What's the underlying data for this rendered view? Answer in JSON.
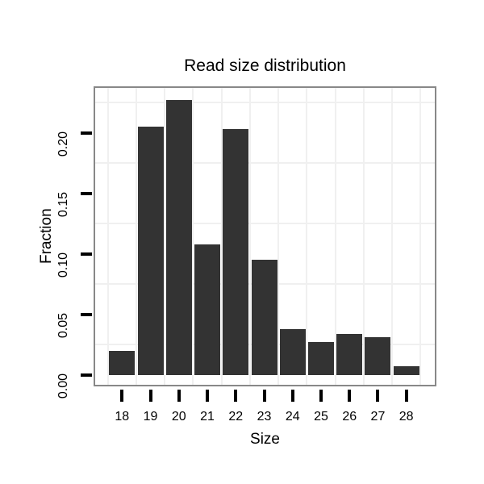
{
  "chart_data": {
    "type": "bar",
    "title": "Read size distribution",
    "xlabel": "Size",
    "ylabel": "Fraction",
    "categories": [
      18,
      19,
      20,
      21,
      22,
      23,
      24,
      25,
      26,
      27,
      28
    ],
    "values": [
      0.02,
      0.205,
      0.227,
      0.108,
      0.203,
      0.095,
      0.038,
      0.027,
      0.034,
      0.031,
      0.007
    ],
    "x_tick_labels": [
      "18",
      "19",
      "20",
      "21",
      "22",
      "23",
      "24",
      "25",
      "26",
      "27",
      "28"
    ],
    "y_ticks": [
      0.0,
      0.05,
      0.1,
      0.15,
      0.2
    ],
    "y_tick_labels": [
      "0.00",
      "0.05",
      "0.10",
      "0.15",
      "0.20"
    ],
    "ylim": [
      -0.009,
      0.238
    ],
    "xlim": [
      17.0,
      29.0
    ],
    "bar_width_fraction": 0.9,
    "grid": "minor-only",
    "legend_position": "none",
    "colors": {
      "bar_fill": "#333333",
      "panel_border": "#888888",
      "grid_minor": "#f0f0f0",
      "tick": "#000000",
      "text": "#000000",
      "background": "#ffffff"
    }
  }
}
